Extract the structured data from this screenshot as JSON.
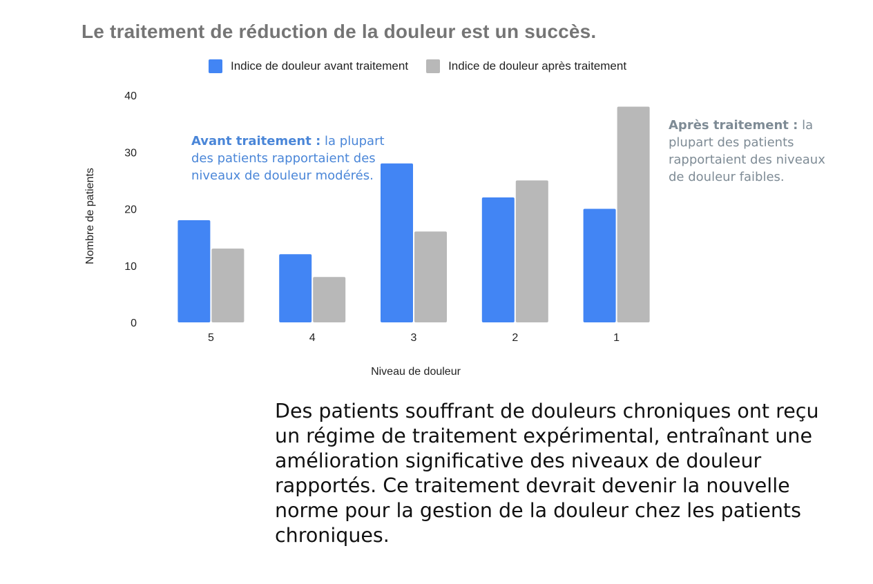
{
  "title": "Le traitement de réduction de la douleur est un succès.",
  "colors": {
    "before": "#4285f4",
    "after": "#b8b8b8",
    "title": "#757575",
    "note_before": "#4a86d8",
    "note_after": "#7e8b95"
  },
  "annotations": {
    "before": {
      "bold": "Avant traitement :",
      "text": " la plupart des patients rapportaient des niveaux de douleur modérés."
    },
    "after": {
      "bold": "Après traitement :",
      "text": " la plupart des patients rapportaient des niveaux de douleur faibles."
    }
  },
  "paragraph": "Des patients souffrant de douleurs chroniques ont reçu un régime de traitement expérimental, entraînant une amélioration significative des niveaux de douleur rapportés. Ce traitement devrait devenir la nouvelle norme pour la gestion de la douleur chez les patients chroniques.",
  "chart_data": {
    "type": "bar",
    "title": "Le traitement de réduction de la douleur est un succès.",
    "xlabel": "Niveau de douleur",
    "ylabel": "Nombre de patients",
    "categories": [
      "5",
      "4",
      "3",
      "2",
      "1"
    ],
    "series": [
      {
        "name": "Indice de douleur avant traitement",
        "values": [
          18,
          12,
          28,
          22,
          20
        ]
      },
      {
        "name": "Indice de douleur après traitement",
        "values": [
          13,
          8,
          16,
          25,
          38
        ]
      }
    ],
    "ylim": [
      0,
      40
    ],
    "yticks": [
      0,
      10,
      20,
      30,
      40
    ],
    "grid": false,
    "legend": "top"
  }
}
